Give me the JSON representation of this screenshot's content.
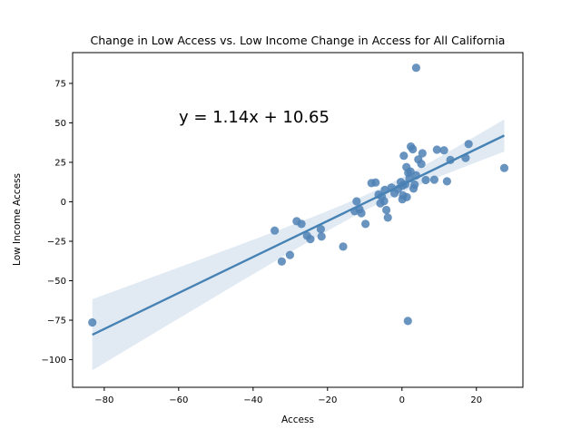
{
  "chart_data": {
    "type": "scatter",
    "title": "Change in Low Access vs. Low Income Change in Access for All California",
    "xlabel": "Access",
    "ylabel": "Low Income Access",
    "xlim": [
      -88.5,
      32.5
    ],
    "ylim": [
      -117.5,
      94.5
    ],
    "xticks": [
      -80,
      -60,
      -40,
      -20,
      0,
      20
    ],
    "yticks": [
      -100,
      -75,
      -50,
      -25,
      0,
      25,
      50,
      75
    ],
    "xtick_labels": [
      "−80",
      "−60",
      "−40",
      "−20",
      "0",
      "20"
    ],
    "ytick_labels": [
      "−100",
      "−75",
      "−50",
      "−25",
      "0",
      "25",
      "50",
      "75"
    ],
    "annotation": "y = 1.14x + 10.65",
    "regression": {
      "slope": 1.14,
      "intercept": 10.65
    },
    "grid": false,
    "colors": {
      "points": "#4f81b5",
      "line": "#4682b4",
      "band": "#c8d8ea"
    },
    "points": [
      {
        "x": -83.2,
        "y": -76.4
      },
      {
        "x": 1.6,
        "y": -75.5
      },
      {
        "x": 3.8,
        "y": 84.9
      },
      {
        "x": -34.2,
        "y": -18.2
      },
      {
        "x": -32.3,
        "y": -37.8
      },
      {
        "x": -30.1,
        "y": -33.7
      },
      {
        "x": -28.3,
        "y": -12.3
      },
      {
        "x": -27.0,
        "y": -14.0
      },
      {
        "x": -25.5,
        "y": -21.5
      },
      {
        "x": -24.6,
        "y": -23.6
      },
      {
        "x": -21.8,
        "y": -17.3
      },
      {
        "x": -21.6,
        "y": -22.0
      },
      {
        "x": -15.8,
        "y": -28.4
      },
      {
        "x": -12.7,
        "y": -6.0
      },
      {
        "x": -12.2,
        "y": 0.3
      },
      {
        "x": -11.4,
        "y": -4.8
      },
      {
        "x": -10.9,
        "y": -7.2
      },
      {
        "x": -9.8,
        "y": -14.0
      },
      {
        "x": -8.2,
        "y": 11.8
      },
      {
        "x": -7.1,
        "y": 12.2
      },
      {
        "x": -6.3,
        "y": 4.6
      },
      {
        "x": -5.8,
        "y": -0.9
      },
      {
        "x": -5.4,
        "y": 3.3
      },
      {
        "x": -4.8,
        "y": 0.4
      },
      {
        "x": -4.6,
        "y": 7.5
      },
      {
        "x": -4.2,
        "y": -5.2
      },
      {
        "x": -3.8,
        "y": -10.0
      },
      {
        "x": -2.8,
        "y": 9.0
      },
      {
        "x": -2.0,
        "y": 5.4
      },
      {
        "x": -1.0,
        "y": 8.1
      },
      {
        "x": -0.3,
        "y": 12.5
      },
      {
        "x": 0.2,
        "y": 10.3
      },
      {
        "x": 0.3,
        "y": 4.0
      },
      {
        "x": 0.1,
        "y": 1.6
      },
      {
        "x": 0.5,
        "y": 29.2
      },
      {
        "x": 0.9,
        "y": 11.1
      },
      {
        "x": 1.2,
        "y": 22.0
      },
      {
        "x": 1.3,
        "y": 3.0
      },
      {
        "x": 1.7,
        "y": 18.4
      },
      {
        "x": 2.0,
        "y": 14.9
      },
      {
        "x": 2.3,
        "y": 19.2
      },
      {
        "x": 2.4,
        "y": 35.0
      },
      {
        "x": 2.9,
        "y": 33.3
      },
      {
        "x": 3.1,
        "y": 8.4
      },
      {
        "x": 3.4,
        "y": 10.9
      },
      {
        "x": 3.8,
        "y": 16.7
      },
      {
        "x": 4.4,
        "y": 26.8
      },
      {
        "x": 5.2,
        "y": 24.0
      },
      {
        "x": 5.5,
        "y": 30.7
      },
      {
        "x": 6.4,
        "y": 13.8
      },
      {
        "x": 8.7,
        "y": 14.0
      },
      {
        "x": 9.4,
        "y": 33.0
      },
      {
        "x": 11.3,
        "y": 32.6
      },
      {
        "x": 12.1,
        "y": 13.0
      },
      {
        "x": 13.0,
        "y": 26.5
      },
      {
        "x": 17.1,
        "y": 27.8
      },
      {
        "x": 17.9,
        "y": 36.6
      },
      {
        "x": 27.5,
        "y": 21.4
      }
    ]
  }
}
